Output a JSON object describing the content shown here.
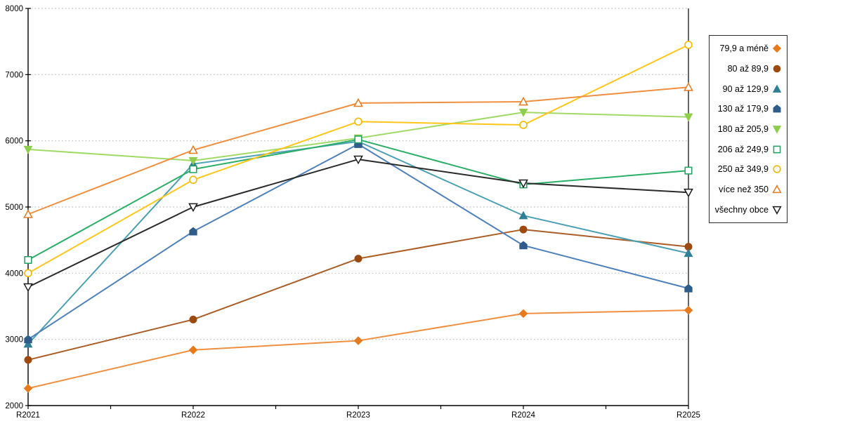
{
  "chart_data": {
    "type": "line",
    "title": "",
    "xlabel": "",
    "ylabel": "",
    "categories": [
      "R2021",
      "R2022",
      "R2023",
      "R2024",
      "R2025"
    ],
    "yticks": [
      2000,
      3000,
      4000,
      5000,
      6000,
      7000,
      8000
    ],
    "ylim": [
      2000,
      8000
    ],
    "grid": "horizontal-dotted",
    "grid_color": "#bdbdbd",
    "axis_color": "#000000",
    "legend_position": "right-outside",
    "series": [
      {
        "name": "79,9 a méně",
        "marker": "diamond",
        "fill": "filled",
        "color": "#e87a1e",
        "line_color": "#ef8f3f",
        "values": [
          2260,
          2840,
          2980,
          3390,
          3440
        ]
      },
      {
        "name": "80 až 89,9",
        "marker": "circle",
        "fill": "filled",
        "color": "#9c4a10",
        "line_color": "#aa5d26",
        "values": [
          2690,
          3300,
          4220,
          4660,
          4400
        ]
      },
      {
        "name": "90 až 129,9",
        "marker": "triangle-up",
        "fill": "filled",
        "color": "#2f7f96",
        "line_color": "#4ba0b4",
        "values": [
          2930,
          5650,
          5990,
          4870,
          4300
        ]
      },
      {
        "name": "130 až 179,9",
        "marker": "pentagon",
        "fill": "filled",
        "color": "#2f5c88",
        "line_color": "#4e81bc",
        "values": [
          3000,
          4630,
          5950,
          4420,
          3770
        ]
      },
      {
        "name": "180 až 205,9",
        "marker": "triangle-down",
        "fill": "filled",
        "color": "#8fce4c",
        "line_color": "#a2da67",
        "values": [
          5870,
          5700,
          6040,
          6430,
          6360
        ]
      },
      {
        "name": "206 až 249,9",
        "marker": "square",
        "fill": "open",
        "color": "#1da35f",
        "line_color": "#2bae66",
        "values": [
          4200,
          5570,
          6020,
          5340,
          5550
        ]
      },
      {
        "name": "250 až 349,9",
        "marker": "circle",
        "fill": "open",
        "color": "#f5b800",
        "line_color": "#ffc61a",
        "values": [
          4000,
          5410,
          6290,
          6240,
          7450
        ]
      },
      {
        "name": "více než 350",
        "marker": "triangle-up",
        "fill": "open",
        "color": "#e87a1e",
        "line_color": "#ef8f3f",
        "values": [
          4890,
          5860,
          6570,
          6590,
          6810
        ]
      },
      {
        "name": "všechny obce",
        "marker": "triangle-down",
        "fill": "open",
        "color": "#1c1c1c",
        "line_color": "#2b2b2b",
        "values": [
          3790,
          5000,
          5720,
          5360,
          5220
        ]
      }
    ]
  }
}
